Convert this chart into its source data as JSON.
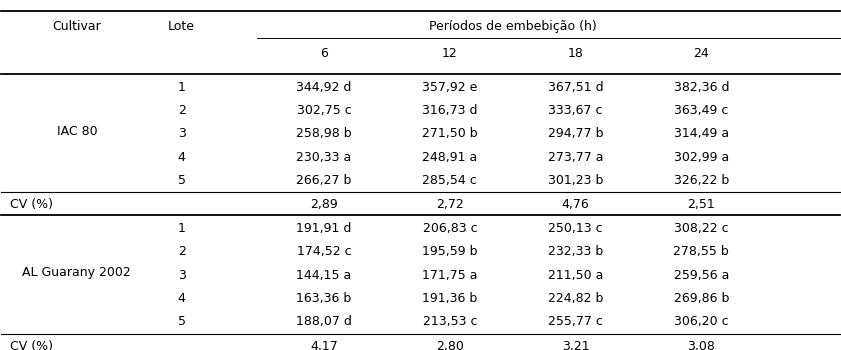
{
  "col_header_top": "Períodos de embebição (h)",
  "col_header_sub": [
    "6",
    "12",
    "18",
    "24"
  ],
  "col1_label": "Cultivar",
  "col2_label": "Lote",
  "iac80_label": "IAC 80",
  "alg_label": "AL Guarany 2002",
  "cv_label": "CV (%)",
  "iac80_rows": [
    [
      "1",
      "344,92 d",
      "357,92 e",
      "367,51 d",
      "382,36 d"
    ],
    [
      "2",
      "302,75 c",
      "316,73 d",
      "333,67 c",
      "363,49 c"
    ],
    [
      "3",
      "258,98 b",
      "271,50 b",
      "294,77 b",
      "314,49 a"
    ],
    [
      "4",
      "230,33 a",
      "248,91 a",
      "273,77 a",
      "302,99 a"
    ],
    [
      "5",
      "266,27 b",
      "285,54 c",
      "301,23 b",
      "326,22 b"
    ]
  ],
  "iac80_cv": [
    "2,89",
    "2,72",
    "4,76",
    "2,51"
  ],
  "alg_rows": [
    [
      "1",
      "191,91 d",
      "206,83 c",
      "250,13 c",
      "308,22 c"
    ],
    [
      "2",
      "174,52 c",
      "195,59 b",
      "232,33 b",
      "278,55 b"
    ],
    [
      "3",
      "144,15 a",
      "171,75 a",
      "211,50 a",
      "259,56 a"
    ],
    [
      "4",
      "163,36 b",
      "191,36 b",
      "224,82 b",
      "269,86 b"
    ],
    [
      "5",
      "188,07 d",
      "213,53 c",
      "255,77 c",
      "306,20 c"
    ]
  ],
  "alg_cv": [
    "4,17",
    "2,80",
    "3,21",
    "3,08"
  ]
}
